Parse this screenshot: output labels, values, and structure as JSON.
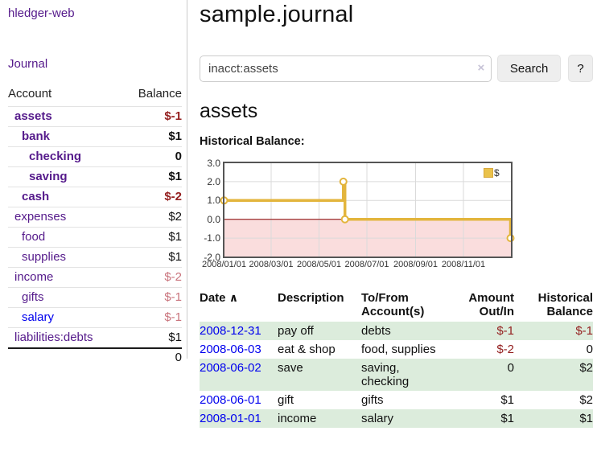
{
  "sidebar": {
    "app_title": "hledger-web",
    "nav": {
      "journal": "Journal"
    },
    "accounts_table": {
      "headers": {
        "account": "Account",
        "balance": "Balance"
      },
      "rows": [
        {
          "name": "assets",
          "balance": "$-1"
        },
        {
          "name": "bank",
          "balance": "$1"
        },
        {
          "name": "checking",
          "balance": "0"
        },
        {
          "name": "saving",
          "balance": "$1"
        },
        {
          "name": "cash",
          "balance": "$-2"
        },
        {
          "name": "expenses",
          "balance": "$2"
        },
        {
          "name": "food",
          "balance": "$1"
        },
        {
          "name": "supplies",
          "balance": "$1"
        },
        {
          "name": "income",
          "balance": "$-2"
        },
        {
          "name": "gifts",
          "balance": "$-1"
        },
        {
          "name": "salary",
          "balance": "$-1"
        },
        {
          "name": "liabilities:debts",
          "balance": "$1"
        }
      ],
      "total": "0"
    }
  },
  "header": {
    "title": "sample.journal"
  },
  "search": {
    "value": "inacct:assets",
    "clear_icon": "×",
    "button_label": "Search",
    "help_label": "?"
  },
  "account_page": {
    "heading": "assets",
    "chart_label": "Historical Balance:"
  },
  "chart_data": {
    "type": "line",
    "title": "Historical Balance",
    "legend": "$",
    "legend_position": "top-right",
    "grid": true,
    "x_range": [
      "2008-01-01",
      "2009-01-01"
    ],
    "y_range": [
      -2,
      3
    ],
    "y_ticks": [
      {
        "label": "3.0",
        "value": 3
      },
      {
        "label": "2.0",
        "value": 2
      },
      {
        "label": "1.0",
        "value": 1
      },
      {
        "label": "0.0",
        "value": 0
      },
      {
        "label": "-1.0",
        "value": -1
      },
      {
        "label": "-2.0",
        "value": -2
      }
    ],
    "x_ticks": [
      {
        "label": "2008/01/01",
        "date": "2008-01-01"
      },
      {
        "label": "2008/03/01",
        "date": "2008-03-01"
      },
      {
        "label": "2008/05/01",
        "date": "2008-05-01"
      },
      {
        "label": "2008/07/01",
        "date": "2008-07-01"
      },
      {
        "label": "2008/09/01",
        "date": "2008-09-01"
      },
      {
        "label": "2008/11/01",
        "date": "2008-11-01"
      }
    ],
    "series": [
      {
        "name": "$",
        "step": true,
        "points": [
          [
            "2008-01-01",
            1
          ],
          [
            "2008-06-01",
            2
          ],
          [
            "2008-06-03",
            0
          ],
          [
            "2008-12-31",
            -1
          ]
        ]
      }
    ],
    "colors": {
      "line": "#e3b53d",
      "negative_region": "#fadddd",
      "zero_line": "#8b0000",
      "grid": "#dadada",
      "border": "#555555"
    }
  },
  "register_table": {
    "headers": {
      "date": "Date",
      "sort_icon": "∧",
      "description": "Description",
      "accounts": "To/From Account(s)",
      "amount": "Amount Out/In",
      "balance": "Historical Balance"
    },
    "rows": [
      {
        "date": "2008-12-31",
        "description": "pay off",
        "accounts": "debts",
        "amount": "$-1",
        "balance": "$-1"
      },
      {
        "date": "2008-06-03",
        "description": "eat & shop",
        "accounts": "food, supplies",
        "amount": "$-2",
        "balance": "0"
      },
      {
        "date": "2008-06-02",
        "description": "save",
        "accounts": "saving, checking",
        "amount": "0",
        "balance": "$2"
      },
      {
        "date": "2008-06-01",
        "description": "gift",
        "accounts": "gifts",
        "amount": "$1",
        "balance": "$2"
      },
      {
        "date": "2008-01-01",
        "description": "income",
        "accounts": "salary",
        "amount": "$1",
        "balance": "$1"
      }
    ]
  }
}
